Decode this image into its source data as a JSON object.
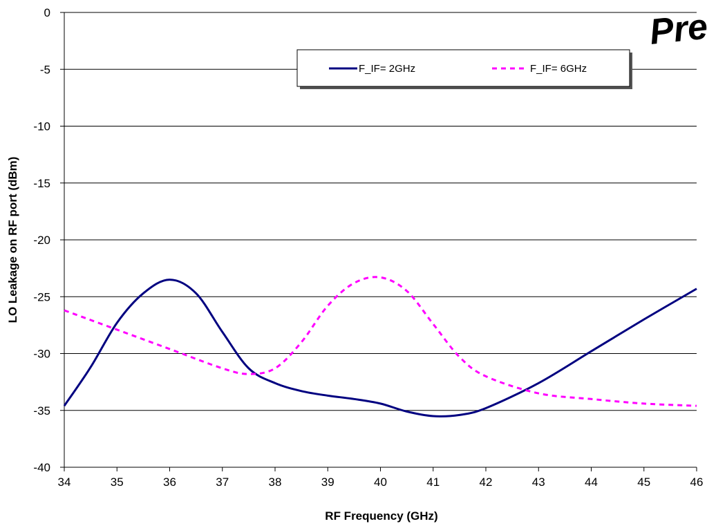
{
  "chart_data": {
    "type": "line",
    "title": "",
    "xlabel": "RF Frequency (GHz)",
    "ylabel": "LO Leakage on RF port (dBm)",
    "xlim": [
      34,
      46
    ],
    "ylim": [
      -40,
      0
    ],
    "xticks": [
      34,
      35,
      36,
      37,
      38,
      39,
      40,
      41,
      42,
      43,
      44,
      45,
      46
    ],
    "yticks": [
      0,
      -5,
      -10,
      -15,
      -20,
      -25,
      -30,
      -35,
      -40
    ],
    "grid": "horizontal",
    "legend_position": "top-right",
    "watermark": "Prel",
    "series": [
      {
        "name": "F_IF= 2GHz",
        "style": "solid",
        "color": "#000080",
        "x": [
          34,
          34.5,
          35,
          35.5,
          36,
          36.5,
          37,
          37.5,
          38,
          38.5,
          39,
          39.5,
          40,
          40.5,
          41,
          41.5,
          42,
          43,
          44,
          45,
          46
        ],
        "y": [
          -34.6,
          -31.2,
          -27.3,
          -24.7,
          -23.5,
          -24.7,
          -28.1,
          -31.3,
          -32.6,
          -33.3,
          -33.7,
          -34.0,
          -34.4,
          -35.1,
          -35.5,
          -35.4,
          -34.8,
          -32.6,
          -29.8,
          -27.0,
          -24.3
        ]
      },
      {
        "name": "F_IF= 6GHz",
        "style": "dashed",
        "color": "#FF00FF",
        "x": [
          34,
          35,
          36,
          37,
          37.5,
          38,
          38.5,
          39,
          39.5,
          40,
          40.5,
          41,
          41.5,
          42,
          43,
          44,
          45,
          46
        ],
        "y": [
          -26.2,
          -27.9,
          -29.6,
          -31.3,
          -31.8,
          -31.3,
          -29.0,
          -25.8,
          -23.8,
          -23.3,
          -24.5,
          -27.4,
          -30.3,
          -32.0,
          -33.5,
          -34.0,
          -34.4,
          -34.6
        ]
      }
    ]
  }
}
